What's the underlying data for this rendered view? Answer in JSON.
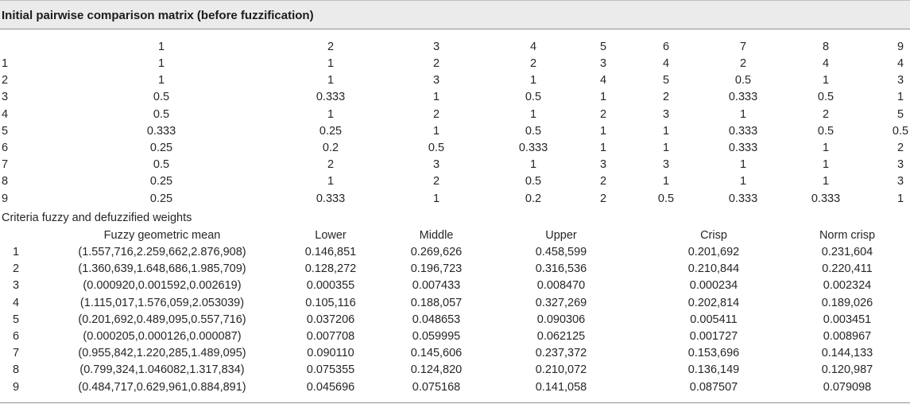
{
  "title": "Initial pairwise comparison matrix (before fuzzification)",
  "matrix": {
    "column_headers": [
      "1",
      "2",
      "3",
      "4",
      "5",
      "6",
      "7",
      "8",
      "9"
    ],
    "rows": [
      {
        "label": "1",
        "values": [
          "1",
          "1",
          "2",
          "2",
          "3",
          "4",
          "2",
          "4",
          "4"
        ]
      },
      {
        "label": "2",
        "values": [
          "1",
          "1",
          "3",
          "1",
          "4",
          "5",
          "0.5",
          "1",
          "3"
        ]
      },
      {
        "label": "3",
        "values": [
          "0.5",
          "0.333",
          "1",
          "0.5",
          "1",
          "2",
          "0.333",
          "0.5",
          "1"
        ]
      },
      {
        "label": "4",
        "values": [
          "0.5",
          "1",
          "2",
          "1",
          "2",
          "3",
          "1",
          "2",
          "5"
        ]
      },
      {
        "label": "5",
        "values": [
          "0.333",
          "0.25",
          "1",
          "0.5",
          "1",
          "1",
          "0.333",
          "0.5",
          "0.5"
        ]
      },
      {
        "label": "6",
        "values": [
          "0.25",
          "0.2",
          "0.5",
          "0.333",
          "1",
          "1",
          "0.333",
          "1",
          "2"
        ]
      },
      {
        "label": "7",
        "values": [
          "0.5",
          "2",
          "3",
          "1",
          "3",
          "3",
          "1",
          "1",
          "3"
        ]
      },
      {
        "label": "8",
        "values": [
          "0.25",
          "1",
          "2",
          "0.5",
          "2",
          "1",
          "1",
          "1",
          "3"
        ]
      },
      {
        "label": "9",
        "values": [
          "0.25",
          "0.333",
          "1",
          "0.2",
          "2",
          "0.5",
          "0.333",
          "0.333",
          "1"
        ]
      }
    ]
  },
  "weights": {
    "section_title": "Criteria fuzzy and defuzzified weights",
    "headers": [
      "Fuzzy geometric mean",
      "Lower",
      "Middle",
      "Upper",
      "Crisp",
      "Norm crisp"
    ],
    "rows": [
      {
        "label": "1",
        "values": [
          "(1.557,716,2.259,662,2.876,908)",
          "0.146,851",
          "0.269,626",
          "0.458,599",
          "0.201,692",
          "0.231,604"
        ]
      },
      {
        "label": "2",
        "values": [
          "(1.360,639,1.648,686,1.985,709)",
          "0.128,272",
          "0.196,723",
          "0.316,536",
          "0.210,844",
          "0.220,411"
        ]
      },
      {
        "label": "3",
        "values": [
          "(0.000920,0.001592,0.002619)",
          "0.000355",
          "0.007433",
          "0.008470",
          "0.000234",
          "0.002324"
        ]
      },
      {
        "label": "4",
        "values": [
          "(1.115,017,1.576,059,2.053039)",
          "0.105,116",
          "0.188,057",
          "0.327,269",
          "0.202,814",
          "0.189,026"
        ]
      },
      {
        "label": "5",
        "values": [
          "(0.201,692,0.489,095,0.557,716)",
          "0.037206",
          "0.048653",
          "0.090306",
          "0.005411",
          "0.003451"
        ]
      },
      {
        "label": "6",
        "values": [
          "(0.000205,0.000126,0.000087)",
          "0.007708",
          "0.059995",
          "0.062125",
          "0.001727",
          "0.008967"
        ]
      },
      {
        "label": "7",
        "values": [
          "(0.955,842,1.220,285,1.489,095)",
          "0.090110",
          "0.145,606",
          "0.237,372",
          "0.153,696",
          "0.144,133"
        ]
      },
      {
        "label": "8",
        "values": [
          "(0.799,324,1.046082,1.317,834)",
          "0.075355",
          "0.124,820",
          "0.210,072",
          "0.136,149",
          "0.120,987"
        ]
      },
      {
        "label": "9",
        "values": [
          "(0.484,717,0.629,961,0.884,891)",
          "0.045696",
          "0.075168",
          "0.141,058",
          "0.087507",
          "0.079098"
        ]
      }
    ]
  }
}
